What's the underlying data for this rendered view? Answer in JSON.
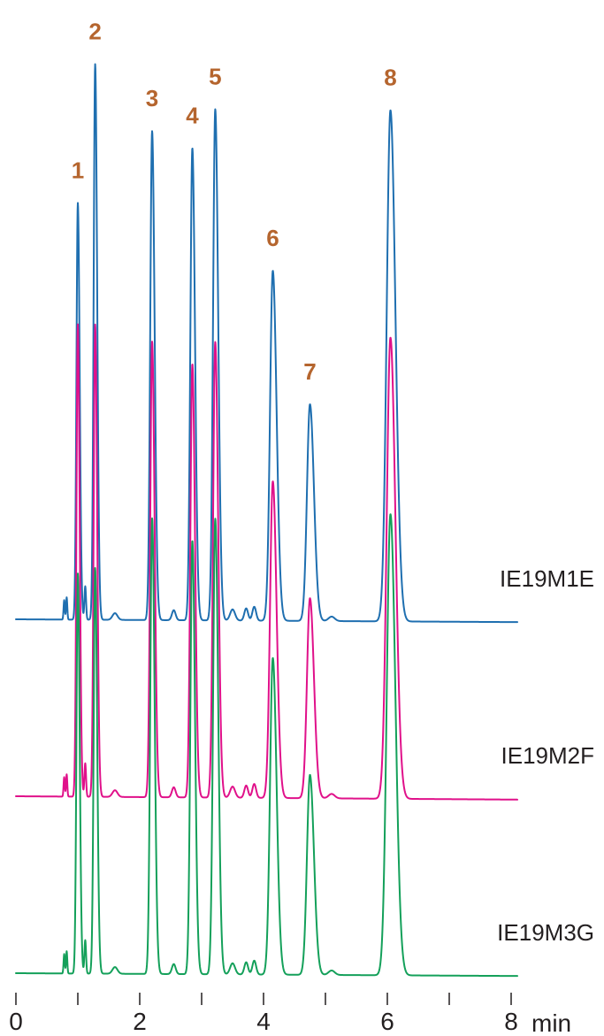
{
  "chart_data": {
    "type": "line",
    "title": "",
    "xlabel": "min",
    "ylabel": "",
    "xlim": [
      0,
      8.1
    ],
    "x_ticks": [
      "0",
      "2",
      "4",
      "6",
      "8"
    ],
    "y_axis_shown": false,
    "grid": false,
    "colors": {
      "IE19M1E": "#1f6fb0",
      "IE19M2F": "#e0118a",
      "IE19M3G": "#14a05a",
      "peak_labels": "#b5652e"
    },
    "peaks": [
      {
        "label": "1",
        "rt": 1.0,
        "width": 0.022
      },
      {
        "label": "2",
        "rt": 1.28,
        "width": 0.024
      },
      {
        "label": "3",
        "rt": 2.2,
        "width": 0.03
      },
      {
        "label": "4",
        "rt": 2.85,
        "width": 0.032
      },
      {
        "label": "5",
        "rt": 3.22,
        "width": 0.035
      },
      {
        "label": "6",
        "rt": 4.15,
        "width": 0.045
      },
      {
        "label": "7",
        "rt": 4.75,
        "width": 0.048
      },
      {
        "label": "8",
        "rt": 6.05,
        "width": 0.06
      }
    ],
    "minor_peaks": [
      {
        "rt": 0.78,
        "height": 0.035,
        "width": 0.01
      },
      {
        "rt": 0.82,
        "height": 0.04,
        "width": 0.01
      },
      {
        "rt": 1.12,
        "height": 0.06,
        "width": 0.013
      },
      {
        "rt": 1.6,
        "height": 0.012,
        "width": 0.04
      },
      {
        "rt": 2.55,
        "height": 0.018,
        "width": 0.03
      },
      {
        "rt": 3.5,
        "height": 0.02,
        "width": 0.04
      },
      {
        "rt": 3.72,
        "height": 0.022,
        "width": 0.03
      },
      {
        "rt": 3.85,
        "height": 0.025,
        "width": 0.03
      },
      {
        "rt": 5.1,
        "height": 0.008,
        "width": 0.05
      }
    ],
    "series": [
      {
        "name": "IE19M1E",
        "peak_heights": [
          0.75,
          1.0,
          0.88,
          0.85,
          0.92,
          0.63,
          0.39,
          0.92
        ],
        "baseline_drift": 0.005
      },
      {
        "name": "IE19M2F",
        "peak_heights": [
          0.85,
          0.85,
          0.82,
          0.78,
          0.82,
          0.57,
          0.36,
          0.83
        ],
        "baseline_drift": 0.006
      },
      {
        "name": "IE19M3G",
        "peak_heights": [
          0.72,
          0.73,
          0.82,
          0.78,
          0.82,
          0.57,
          0.36,
          0.83
        ],
        "baseline_drift": 0.005
      }
    ]
  }
}
